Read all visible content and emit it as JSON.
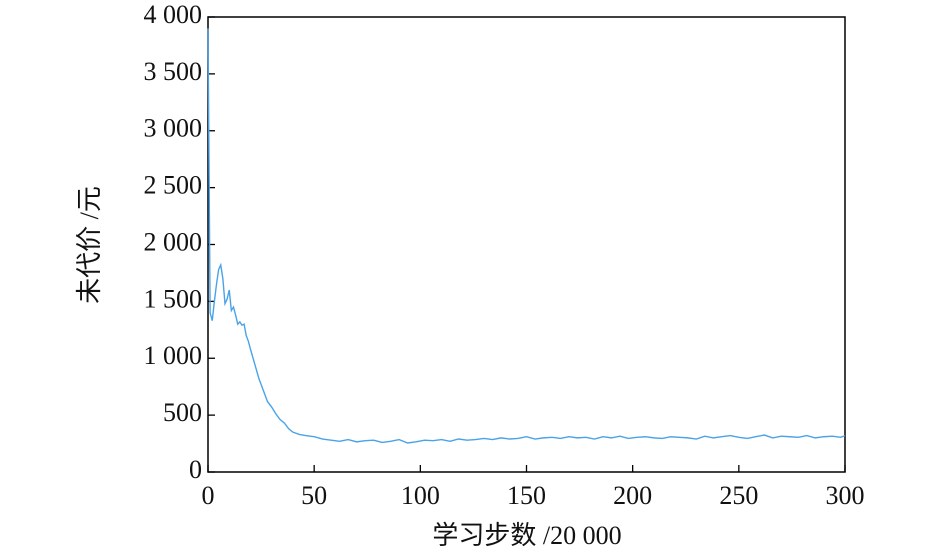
{
  "chart_data": {
    "type": "line",
    "xlabel": "学习步数 /20 000",
    "ylabel": "未代价 /元",
    "x": [
      0,
      1,
      2,
      3,
      4,
      5,
      6,
      7,
      8,
      9,
      10,
      11,
      12,
      13,
      14,
      15,
      16,
      17,
      18,
      19,
      20,
      22,
      24,
      26,
      28,
      30,
      32,
      34,
      36,
      38,
      40,
      43,
      46,
      50,
      54,
      58,
      62,
      66,
      70,
      74,
      78,
      82,
      86,
      90,
      94,
      98,
      102,
      106,
      110,
      114,
      118,
      122,
      126,
      130,
      134,
      138,
      142,
      146,
      150,
      154,
      158,
      162,
      166,
      170,
      174,
      178,
      182,
      186,
      190,
      194,
      198,
      202,
      206,
      210,
      214,
      218,
      222,
      226,
      230,
      234,
      238,
      242,
      246,
      250,
      254,
      258,
      262,
      266,
      270,
      274,
      278,
      282,
      286,
      290,
      294,
      298,
      300
    ],
    "series": [
      {
        "color": "#4aa3e8",
        "values": [
          3900,
          1400,
          1330,
          1500,
          1650,
          1780,
          1820,
          1700,
          1480,
          1520,
          1600,
          1420,
          1450,
          1380,
          1300,
          1320,
          1290,
          1300,
          1200,
          1150,
          1080,
          950,
          820,
          720,
          620,
          570,
          510,
          460,
          430,
          380,
          350,
          330,
          320,
          310,
          290,
          280,
          270,
          285,
          265,
          275,
          280,
          260,
          270,
          285,
          255,
          265,
          280,
          275,
          285,
          270,
          290,
          280,
          285,
          295,
          285,
          300,
          290,
          295,
          310,
          290,
          300,
          305,
          295,
          310,
          300,
          305,
          290,
          310,
          300,
          315,
          295,
          305,
          310,
          300,
          295,
          310,
          305,
          300,
          290,
          315,
          300,
          310,
          320,
          305,
          295,
          310,
          325,
          300,
          315,
          310,
          305,
          320,
          300,
          310,
          315,
          305,
          320
        ]
      }
    ],
    "xlim": [
      0,
      300
    ],
    "xticks": [
      0,
      50,
      100,
      150,
      200,
      250,
      300
    ],
    "ylim": [
      0,
      4000
    ],
    "yticks": [
      0,
      500,
      {
        "value": 1000,
        "label": "1 000"
      },
      {
        "value": 1500,
        "label": "1 500"
      },
      {
        "value": 2000,
        "label": "2 000"
      },
      {
        "value": 2500,
        "label": "2 500"
      },
      {
        "value": 3000,
        "label": "3 000"
      },
      {
        "value": 3500,
        "label": "3 500"
      },
      {
        "value": 4000,
        "label": "4 000"
      }
    ]
  }
}
